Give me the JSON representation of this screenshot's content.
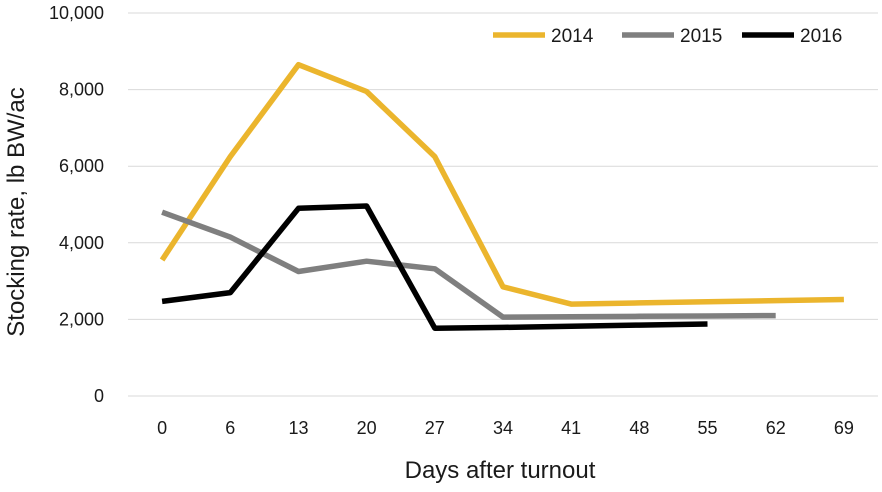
{
  "chart_data": {
    "type": "line",
    "xlabel": "Days after turnout",
    "ylabel": "Stocking rate, lb BW/ac",
    "categories": [
      "0",
      "6",
      "13",
      "20",
      "27",
      "34",
      "41",
      "48",
      "55",
      "62",
      "69"
    ],
    "ylim": [
      0,
      10000
    ],
    "yticks": [
      0,
      2000,
      4000,
      6000,
      8000,
      10000
    ],
    "ytick_labels": [
      "0",
      "2,000",
      "4,000",
      "6,000",
      "8,000",
      "10,000"
    ],
    "grid": true,
    "legend_position": "top-right",
    "series": [
      {
        "name": "2014",
        "color": "#EBB52D",
        "values": [
          3550,
          6250,
          8650,
          7950,
          6250,
          2850,
          2400,
          2430,
          2460,
          2490,
          2520
        ]
      },
      {
        "name": "2015",
        "color": "#7F7F7F",
        "values": [
          4800,
          4150,
          3250,
          3520,
          3320,
          2060,
          2070,
          2080,
          2090,
          2100,
          null
        ]
      },
      {
        "name": "2016",
        "color": "#000000",
        "values": [
          2470,
          2700,
          4900,
          4960,
          1770,
          1790,
          1820,
          1850,
          1880,
          null,
          null
        ]
      }
    ]
  }
}
